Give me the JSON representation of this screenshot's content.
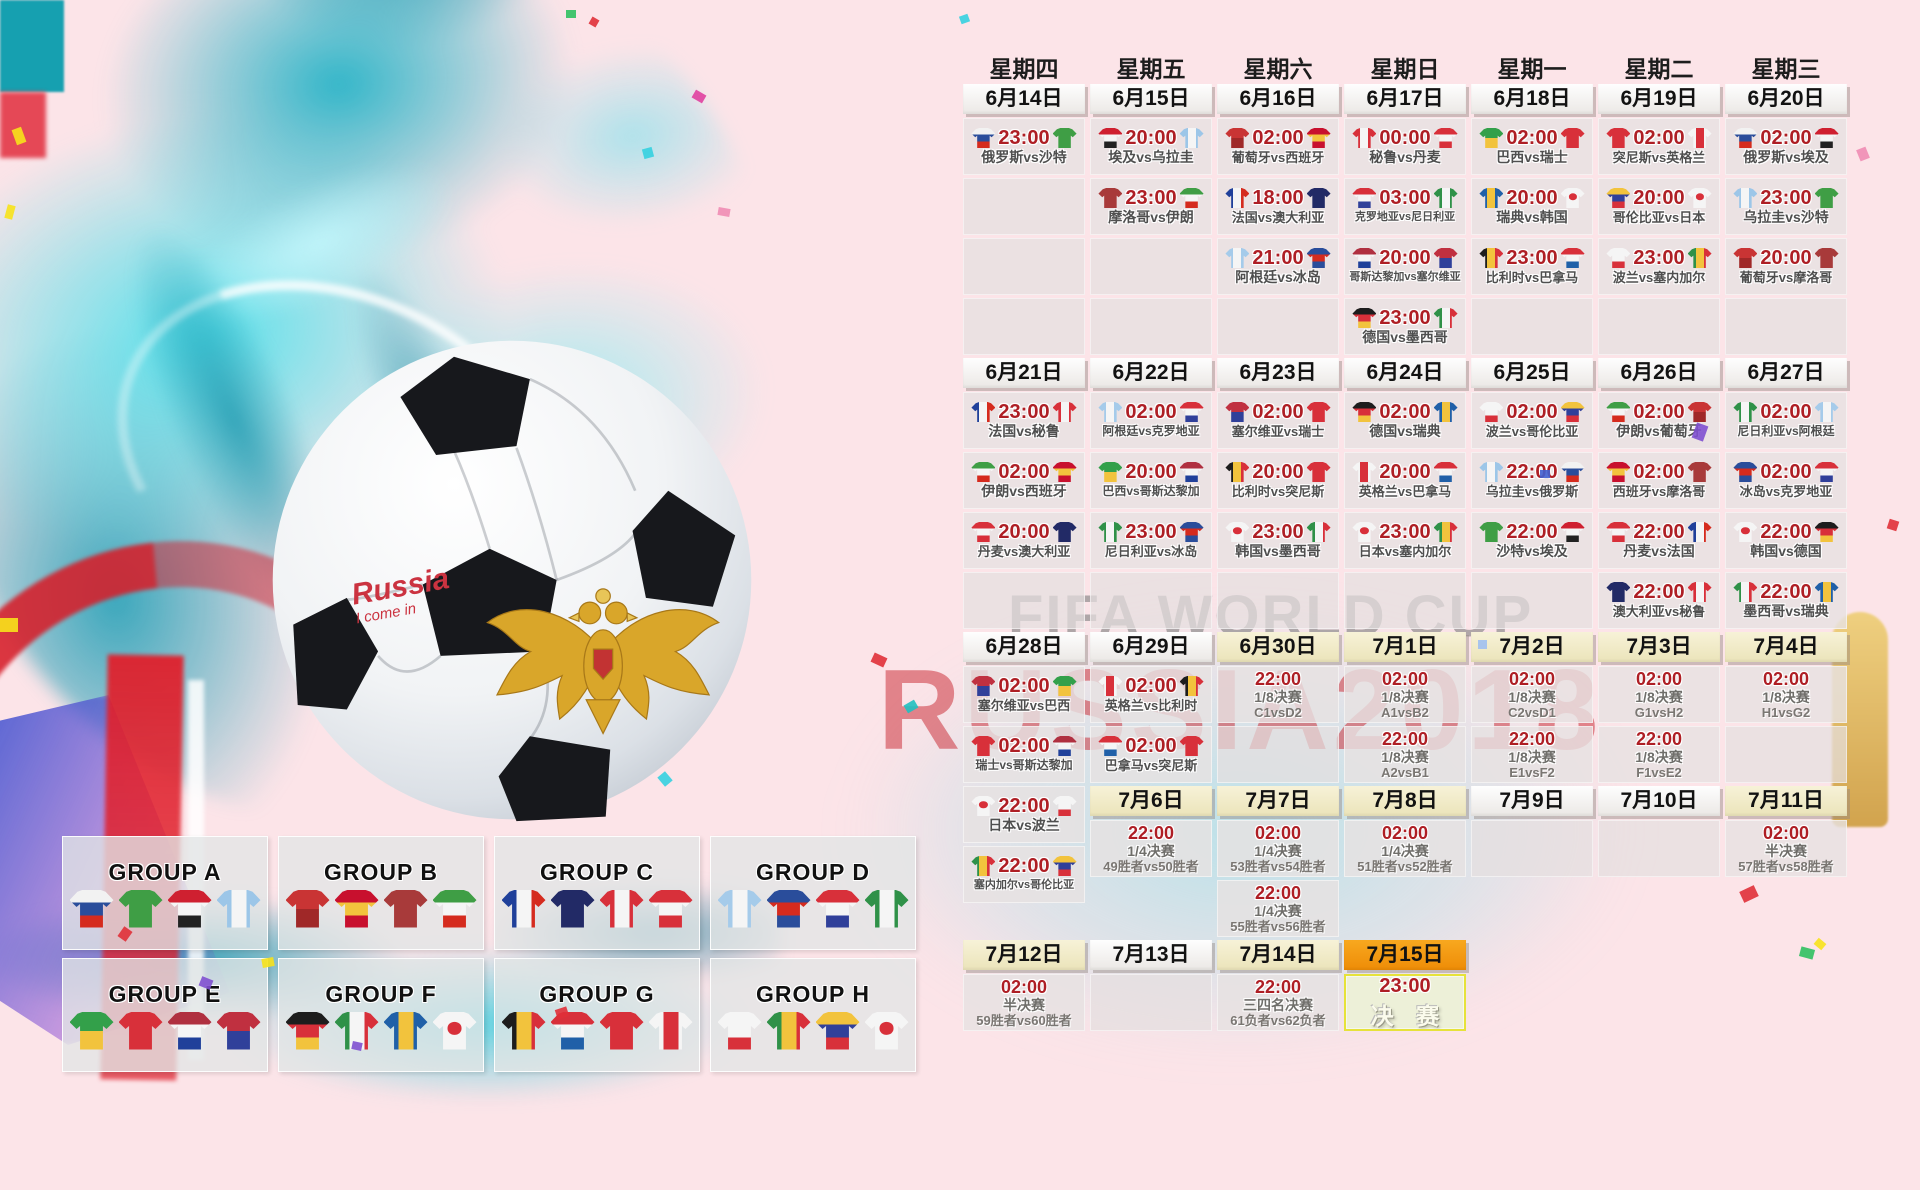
{
  "watermarks": {
    "fifa": "FIFA WORLD CUP",
    "russia": "RUSSIA2018"
  },
  "ball_script": {
    "line1": "Russia",
    "line2": "I come in"
  },
  "weekdays": [
    "星期四",
    "星期五",
    "星期六",
    "星期日",
    "星期一",
    "星期二",
    "星期三"
  ],
  "colors": {
    "background_pink": "#fce4e8",
    "cell_gray": "#e7e2e2",
    "time_red": "#ae1e24",
    "team_text": "#4f4f4f",
    "header_plain": "#faf7f5",
    "header_cream": "#f1ecca",
    "header_orange": "#f59f16",
    "final_border": "#e6e23a",
    "watermark_gray": "#7d7d7d",
    "watermark_red": "#c7212c",
    "splash_teal": "#2fc4d6"
  },
  "teams": {
    "俄罗斯": {
      "c": [
        "#f2f2f2",
        "#2a4d9b",
        "#d52b1e"
      ]
    },
    "沙特": {
      "c": [
        "#3f9e45"
      ]
    },
    "埃及": {
      "c": [
        "#cf2030",
        "#f5f5f5",
        "#222222"
      ]
    },
    "乌拉圭": {
      "c": [
        "#9cc6e8",
        "#f5f5f5",
        "#9cc6e8"
      ],
      "v": true
    },
    "葡萄牙": {
      "c": [
        "#c93434",
        "#a02828"
      ]
    },
    "西班牙": {
      "c": [
        "#c8102e",
        "#f2c33d",
        "#c8102e"
      ]
    },
    "摩洛哥": {
      "c": [
        "#a83a3a"
      ]
    },
    "伊朗": {
      "c": [
        "#3f9e45",
        "#f5f5f5",
        "#d52b1e"
      ]
    },
    "法国": {
      "c": [
        "#20409a",
        "#f5f5f5",
        "#d52b1e"
      ],
      "v": true
    },
    "澳大利亚": {
      "c": [
        "#222a66"
      ]
    },
    "秘鲁": {
      "c": [
        "#d8303a",
        "#f5f5f5",
        "#d8303a"
      ],
      "v": true
    },
    "丹麦": {
      "c": [
        "#d8303a",
        "#f5f5f5",
        "#d8303a"
      ]
    },
    "阿根廷": {
      "c": [
        "#a5cbea",
        "#f5f5f5",
        "#a5cbea"
      ],
      "v": true
    },
    "冰岛": {
      "c": [
        "#2a4d9b",
        "#d52b1e",
        "#2a4d9b"
      ]
    },
    "克罗地亚": {
      "c": [
        "#d8303a",
        "#f5f5f5",
        "#30409a"
      ]
    },
    "尼日利亚": {
      "c": [
        "#2f9148",
        "#f5f5f5",
        "#2f9148"
      ],
      "v": true
    },
    "巴西": {
      "c": [
        "#33a04a",
        "#f2c33d"
      ]
    },
    "瑞士": {
      "c": [
        "#d8303a"
      ]
    },
    "哥斯达黎加": {
      "c": [
        "#b03040",
        "#f5f5f5",
        "#20409a"
      ]
    },
    "塞尔维亚": {
      "c": [
        "#c03040",
        "#30409a"
      ]
    },
    "德国": {
      "c": [
        "#1d1d1d",
        "#d8303a",
        "#f2c33d"
      ]
    },
    "墨西哥": {
      "c": [
        "#2f9148",
        "#f5f5f5",
        "#d8303a"
      ],
      "v": true
    },
    "瑞典": {
      "c": [
        "#2060a8",
        "#f2c33d",
        "#2060a8"
      ],
      "v": true
    },
    "韩国": {
      "c": [
        "#f5f5f5"
      ],
      "dot": "#d8303a"
    },
    "比利时": {
      "c": [
        "#1d1d1d",
        "#f2c33d",
        "#d8303a"
      ],
      "v": true
    },
    "巴拿马": {
      "c": [
        "#d8303a",
        "#f5f5f5",
        "#2060a8"
      ]
    },
    "突尼斯": {
      "c": [
        "#d8303a"
      ]
    },
    "英格兰": {
      "c": [
        "#f5f5f5",
        "#d8303a",
        "#f5f5f5"
      ],
      "v": true
    },
    "波兰": {
      "c": [
        "#f5f5f5",
        "#f5f5f5",
        "#d8303a"
      ]
    },
    "塞内加尔": {
      "c": [
        "#2f9148",
        "#f2c33d",
        "#d8303a"
      ],
      "v": true
    },
    "哥伦比亚": {
      "c": [
        "#f2c33d",
        "#30409a",
        "#d8303a"
      ]
    },
    "日本": {
      "c": [
        "#f5f5f5"
      ],
      "dot": "#d8303a"
    }
  },
  "calendar": {
    "segments": [
      {
        "dates": [
          {
            "l": "6月14日",
            "k": "p"
          },
          {
            "l": "6月15日",
            "k": "p"
          },
          {
            "l": "6月16日",
            "k": "p"
          },
          {
            "l": "6月17日",
            "k": "p"
          },
          {
            "l": "6月18日",
            "k": "p"
          },
          {
            "l": "6月19日",
            "k": "p"
          },
          {
            "l": "6月20日",
            "k": "p"
          }
        ],
        "rows": [
          [
            {
              "t": "23:00",
              "h": "俄罗斯",
              "a": "沙特"
            },
            {
              "t": "20:00",
              "h": "埃及",
              "a": "乌拉圭"
            },
            {
              "t": "02:00",
              "h": "葡萄牙",
              "a": "西班牙"
            },
            {
              "t": "00:00",
              "h": "秘鲁",
              "a": "丹麦"
            },
            {
              "t": "02:00",
              "h": "巴西",
              "a": "瑞士"
            },
            {
              "t": "02:00",
              "h": "突尼斯",
              "a": "英格兰"
            },
            {
              "t": "02:00",
              "h": "俄罗斯",
              "a": "埃及"
            }
          ],
          [
            "E",
            {
              "t": "23:00",
              "h": "摩洛哥",
              "a": "伊朗"
            },
            {
              "t": "18:00",
              "h": "法国",
              "a": "澳大利亚"
            },
            {
              "t": "03:00",
              "h": "克罗地亚",
              "a": "尼日利亚"
            },
            {
              "t": "20:00",
              "h": "瑞典",
              "a": "韩国"
            },
            {
              "t": "20:00",
              "h": "哥伦比亚",
              "a": "日本"
            },
            {
              "t": "23:00",
              "h": "乌拉圭",
              "a": "沙特"
            }
          ],
          [
            "E",
            "E",
            {
              "t": "21:00",
              "h": "阿根廷",
              "a": "冰岛"
            },
            {
              "t": "20:00",
              "h": "哥斯达黎加",
              "a": "塞尔维亚"
            },
            {
              "t": "23:00",
              "h": "比利时",
              "a": "巴拿马"
            },
            {
              "t": "23:00",
              "h": "波兰",
              "a": "塞内加尔"
            },
            {
              "t": "20:00",
              "h": "葡萄牙",
              "a": "摩洛哥"
            }
          ],
          [
            "E",
            "E",
            "E",
            {
              "t": "23:00",
              "h": "德国",
              "a": "墨西哥"
            },
            "E",
            "E",
            "E"
          ]
        ]
      },
      {
        "dates": [
          {
            "l": "6月21日",
            "k": "p"
          },
          {
            "l": "6月22日",
            "k": "p"
          },
          {
            "l": "6月23日",
            "k": "p"
          },
          {
            "l": "6月24日",
            "k": "p"
          },
          {
            "l": "6月25日",
            "k": "p"
          },
          {
            "l": "6月26日",
            "k": "p"
          },
          {
            "l": "6月27日",
            "k": "p"
          }
        ],
        "rows": [
          [
            {
              "t": "23:00",
              "h": "法国",
              "a": "秘鲁"
            },
            {
              "t": "02:00",
              "h": "阿根廷",
              "a": "克罗地亚"
            },
            {
              "t": "02:00",
              "h": "塞尔维亚",
              "a": "瑞士"
            },
            {
              "t": "02:00",
              "h": "德国",
              "a": "瑞典"
            },
            {
              "t": "02:00",
              "h": "波兰",
              "a": "哥伦比亚"
            },
            {
              "t": "02:00",
              "h": "伊朗",
              "a": "葡萄牙"
            },
            {
              "t": "02:00",
              "h": "尼日利亚",
              "a": "阿根廷"
            }
          ],
          [
            {
              "t": "02:00",
              "h": "伊朗",
              "a": "西班牙"
            },
            {
              "t": "20:00",
              "h": "巴西",
              "a": "哥斯达黎加"
            },
            {
              "t": "20:00",
              "h": "比利时",
              "a": "突尼斯"
            },
            {
              "t": "20:00",
              "h": "英格兰",
              "a": "巴拿马"
            },
            {
              "t": "22:00",
              "h": "乌拉圭",
              "a": "俄罗斯"
            },
            {
              "t": "02:00",
              "h": "西班牙",
              "a": "摩洛哥"
            },
            {
              "t": "02:00",
              "h": "冰岛",
              "a": "克罗地亚"
            }
          ],
          [
            {
              "t": "20:00",
              "h": "丹麦",
              "a": "澳大利亚"
            },
            {
              "t": "23:00",
              "h": "尼日利亚",
              "a": "冰岛"
            },
            {
              "t": "23:00",
              "h": "韩国",
              "a": "墨西哥"
            },
            {
              "t": "23:00",
              "h": "日本",
              "a": "塞内加尔"
            },
            {
              "t": "22:00",
              "h": "沙特",
              "a": "埃及"
            },
            {
              "t": "22:00",
              "h": "丹麦",
              "a": "法国"
            },
            {
              "t": "22:00",
              "h": "韩国",
              "a": "德国"
            }
          ],
          [
            "E",
            "E",
            "E",
            "E",
            "E",
            {
              "t": "22:00",
              "h": "澳大利亚",
              "a": "秘鲁"
            },
            {
              "t": "22:00",
              "h": "墨西哥",
              "a": "瑞典"
            }
          ]
        ]
      },
      {
        "dates": [
          {
            "l": "6月28日",
            "k": "p"
          },
          {
            "l": "6月29日",
            "k": "p"
          },
          {
            "l": "6月30日",
            "k": "c"
          },
          {
            "l": "7月1日",
            "k": "c"
          },
          {
            "l": "7月2日",
            "k": "c"
          },
          {
            "l": "7月3日",
            "k": "c"
          },
          {
            "l": "7月4日",
            "k": "c"
          }
        ],
        "rows": [
          [
            {
              "t": "02:00",
              "h": "塞尔维亚",
              "a": "巴西"
            },
            {
              "t": "02:00",
              "h": "英格兰",
              "a": "比利时"
            },
            {
              "t": "22:00",
              "s": "1/8决赛",
              "p": "C1vsD2"
            },
            {
              "t": "02:00",
              "s": "1/8决赛",
              "p": "A1vsB2"
            },
            {
              "t": "02:00",
              "s": "1/8决赛",
              "p": "C2vsD1"
            },
            {
              "t": "02:00",
              "s": "1/8决赛",
              "p": "G1vsH2"
            },
            {
              "t": "02:00",
              "s": "1/8决赛",
              "p": "H1vsG2"
            }
          ],
          [
            {
              "t": "02:00",
              "h": "瑞士",
              "a": "哥斯达黎加"
            },
            {
              "t": "02:00",
              "h": "巴拿马",
              "a": "突尼斯"
            },
            "E",
            {
              "t": "22:00",
              "s": "1/8决赛",
              "p": "A2vsB1"
            },
            {
              "t": "22:00",
              "s": "1/8决赛",
              "p": "E1vsF2"
            },
            {
              "t": "22:00",
              "s": "1/8决赛",
              "p": "F1vsE2"
            },
            "E"
          ]
        ]
      },
      {
        "dates": [
          null,
          {
            "l": "7月6日",
            "k": "c"
          },
          {
            "l": "7月7日",
            "k": "c"
          },
          {
            "l": "7月8日",
            "k": "c"
          },
          {
            "l": "7月9日",
            "k": "p"
          },
          {
            "l": "7月10日",
            "k": "p"
          },
          {
            "l": "7月11日",
            "k": "c"
          }
        ],
        "overlays": [
          {
            "col": 0,
            "slot": 0,
            "cell": {
              "t": "22:00",
              "h": "日本",
              "a": "波兰"
            }
          },
          {
            "col": 0,
            "slot": 1,
            "cell": {
              "t": "22:00",
              "h": "塞内加尔",
              "a": "哥伦比亚"
            }
          }
        ],
        "rows": [
          [
            null,
            {
              "t": "22:00",
              "s": "1/4决赛",
              "p": "49胜者vs50胜者"
            },
            {
              "t": "02:00",
              "s": "1/4决赛",
              "p": "53胜者vs54胜者"
            },
            {
              "t": "02:00",
              "s": "1/4决赛",
              "p": "51胜者vs52胜者"
            },
            "E",
            "E",
            {
              "t": "02:00",
              "s": "半决赛",
              "p": "57胜者vs58胜者"
            }
          ],
          [
            null,
            null,
            {
              "t": "22:00",
              "s": "1/4决赛",
              "p": "55胜者vs56胜者"
            },
            null,
            null,
            null,
            null
          ]
        ]
      },
      {
        "dates": [
          {
            "l": "7月12日",
            "k": "c"
          },
          {
            "l": "7月13日",
            "k": "p"
          },
          {
            "l": "7月14日",
            "k": "c"
          },
          {
            "l": "7月15日",
            "k": "o"
          },
          null,
          null,
          null
        ],
        "rows": [
          [
            {
              "t": "02:00",
              "s": "半决赛",
              "p": "59胜者vs60胜者"
            },
            "E",
            {
              "t": "22:00",
              "s": "三四名决赛",
              "p": "61负者vs62负者"
            },
            {
              "t": "23:00",
              "s": "决 赛",
              "f": 1
            },
            null,
            null,
            null
          ]
        ]
      }
    ]
  },
  "groups": [
    {
      "name": "GROUP A",
      "teams": [
        "俄罗斯",
        "沙特",
        "埃及",
        "乌拉圭"
      ]
    },
    {
      "name": "GROUP B",
      "teams": [
        "葡萄牙",
        "西班牙",
        "摩洛哥",
        "伊朗"
      ]
    },
    {
      "name": "GROUP C",
      "teams": [
        "法国",
        "澳大利亚",
        "秘鲁",
        "丹麦"
      ]
    },
    {
      "name": "GROUP D",
      "teams": [
        "阿根廷",
        "冰岛",
        "克罗地亚",
        "尼日利亚"
      ]
    },
    {
      "name": "GROUP E",
      "teams": [
        "巴西",
        "瑞士",
        "哥斯达黎加",
        "塞尔维亚"
      ]
    },
    {
      "name": "GROUP F",
      "teams": [
        "德国",
        "墨西哥",
        "瑞典",
        "韩国"
      ]
    },
    {
      "name": "GROUP G",
      "teams": [
        "比利时",
        "巴拿马",
        "突尼斯",
        "英格兰"
      ]
    },
    {
      "name": "GROUP H",
      "teams": [
        "波兰",
        "塞内加尔",
        "哥伦比亚",
        "日本"
      ]
    }
  ],
  "art": {
    "confetti_palette": [
      "#f7e21b",
      "#e040a0",
      "#35d0e0",
      "#f08cb4",
      "#e03038",
      "#20c0c0",
      "#8050d0",
      "#30c060",
      "#4060d0",
      "#a0c0f0"
    ]
  }
}
